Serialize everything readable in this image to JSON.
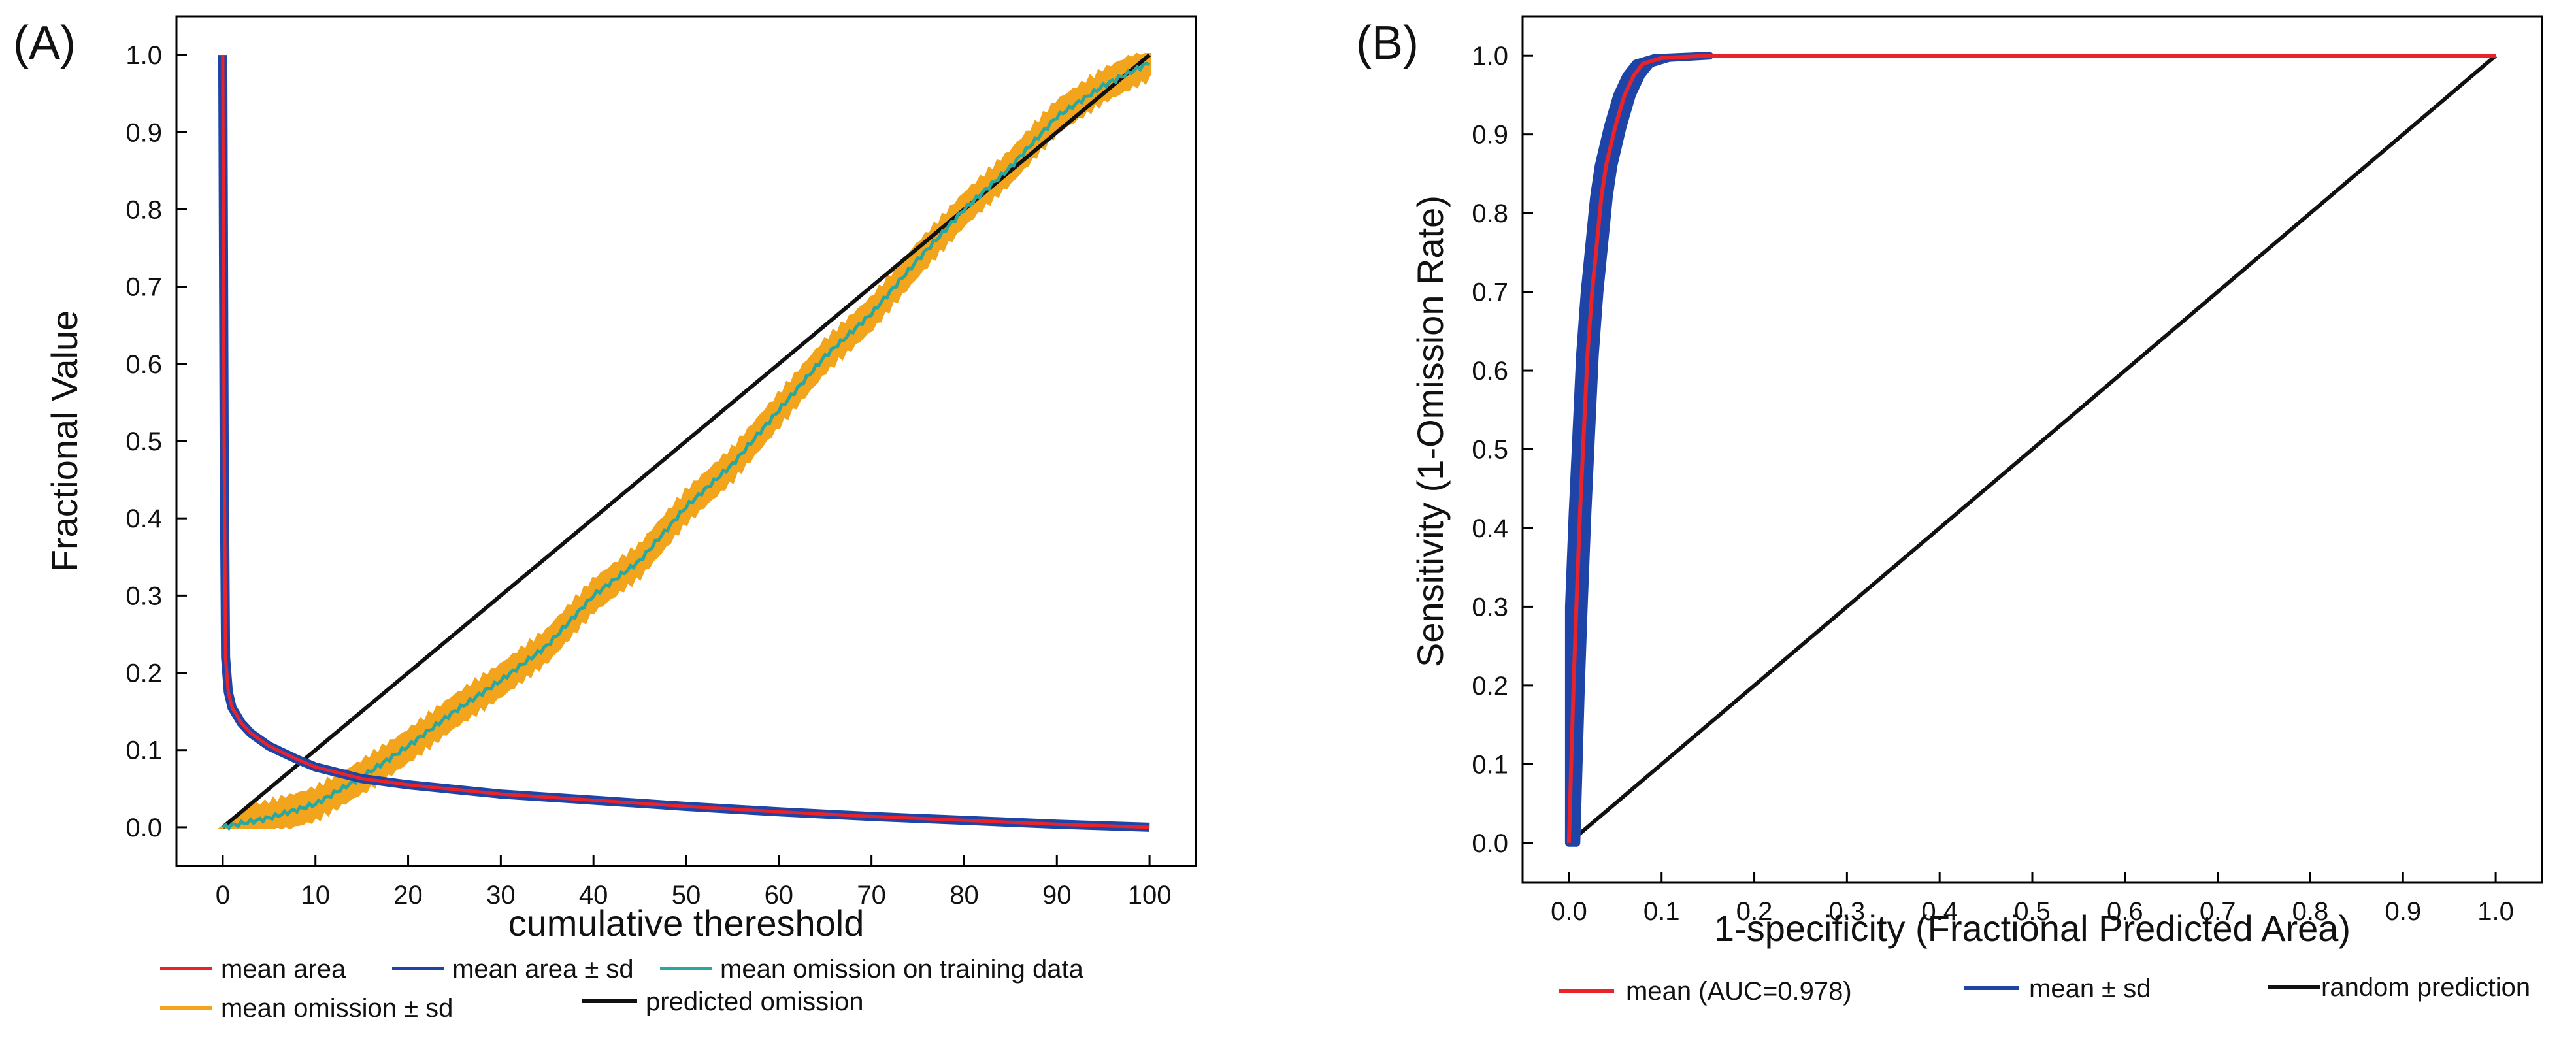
{
  "chart_data": [
    {
      "panel_label": "(A)",
      "type": "line",
      "xlabel": "cumulative thereshold",
      "ylabel": "Fractional Value",
      "xlim": [
        -5,
        105
      ],
      "ylim": [
        -0.05,
        1.05
      ],
      "xticks": [
        "0",
        "10",
        "20",
        "30",
        "40",
        "50",
        "60",
        "70",
        "80",
        "90",
        "100"
      ],
      "yticks": [
        "0.0",
        "0.1",
        "0.2",
        "0.3",
        "0.4",
        "0.5",
        "0.6",
        "0.7",
        "0.8",
        "0.9",
        "1.0"
      ],
      "colors": {
        "mean_area": "#e8232a",
        "mean_area_sd": "#1f44a8",
        "mean_omission": "#2aa8a0",
        "omission_sd": "#f2a51c",
        "predicted": "#111111"
      },
      "series": [
        {
          "name": "predicted omission",
          "points": [
            [
              0,
              0
            ],
            [
              100,
              1
            ]
          ]
        },
        {
          "name": "mean omission on training data",
          "points": [
            [
              0,
              0
            ],
            [
              5,
              0.012
            ],
            [
              10,
              0.03
            ],
            [
              15,
              0.065
            ],
            [
              20,
              0.105
            ],
            [
              25,
              0.15
            ],
            [
              30,
              0.19
            ],
            [
              35,
              0.235
            ],
            [
              40,
              0.3
            ],
            [
              45,
              0.345
            ],
            [
              50,
              0.415
            ],
            [
              55,
              0.47
            ],
            [
              60,
              0.54
            ],
            [
              65,
              0.61
            ],
            [
              70,
              0.665
            ],
            [
              75,
              0.735
            ],
            [
              80,
              0.8
            ],
            [
              85,
              0.855
            ],
            [
              90,
              0.92
            ],
            [
              95,
              0.96
            ],
            [
              100,
              0.99
            ]
          ]
        },
        {
          "name": "mean omission ± sd",
          "band": 0.022
        },
        {
          "name": "mean area",
          "points": [
            [
              0,
              1.0
            ],
            [
              0.15,
              0.5
            ],
            [
              0.3,
              0.22
            ],
            [
              0.6,
              0.175
            ],
            [
              1,
              0.155
            ],
            [
              2,
              0.135
            ],
            [
              3,
              0.122
            ],
            [
              5,
              0.105
            ],
            [
              8,
              0.088
            ],
            [
              10,
              0.078
            ],
            [
              15,
              0.063
            ],
            [
              20,
              0.055
            ],
            [
              30,
              0.043
            ],
            [
              40,
              0.035
            ],
            [
              50,
              0.027
            ],
            [
              60,
              0.02
            ],
            [
              70,
              0.014
            ],
            [
              80,
              0.009
            ],
            [
              90,
              0.004
            ],
            [
              100,
              0.0
            ]
          ]
        },
        {
          "name": "mean area ± sd",
          "band": 0.004
        }
      ],
      "legend": [
        {
          "label": "mean area",
          "color": "#e8232a"
        },
        {
          "label": "mean area ± sd",
          "color": "#1f44a8"
        },
        {
          "label": "mean omission on training data",
          "color": "#2aa8a0"
        },
        {
          "label": "mean omission ± sd",
          "color": "#f2a51c"
        },
        {
          "label": "predicted omission",
          "color": "#111111"
        }
      ]
    },
    {
      "panel_label": "(B)",
      "type": "line",
      "xlabel": "1-specificity (Fractional Predicted Area)",
      "ylabel": "Sensitivity (1-Omission Rate)",
      "xlim": [
        -0.05,
        1.05
      ],
      "ylim": [
        -0.05,
        1.05
      ],
      "xticks": [
        "0.0",
        "0.1",
        "0.2",
        "0.3",
        "0.4",
        "0.5",
        "0.6",
        "0.7",
        "0.8",
        "0.9",
        "1.0"
      ],
      "yticks": [
        "0.0",
        "0.1",
        "0.2",
        "0.3",
        "0.4",
        "0.5",
        "0.6",
        "0.7",
        "0.8",
        "0.9",
        "1.0"
      ],
      "colors": {
        "mean": "#e8232a",
        "sd": "#1f44a8",
        "random": "#111111"
      },
      "series": [
        {
          "name": "random prediction",
          "points": [
            [
              0,
              0
            ],
            [
              1,
              1
            ]
          ]
        },
        {
          "name": "mean (AUC=0.978)",
          "points": [
            [
              0,
              0
            ],
            [
              0.002,
              0.08
            ],
            [
              0.005,
              0.2
            ],
            [
              0.008,
              0.3
            ],
            [
              0.012,
              0.42
            ],
            [
              0.016,
              0.52
            ],
            [
              0.02,
              0.62
            ],
            [
              0.025,
              0.7
            ],
            [
              0.03,
              0.76
            ],
            [
              0.035,
              0.82
            ],
            [
              0.04,
              0.86
            ],
            [
              0.05,
              0.91
            ],
            [
              0.06,
              0.95
            ],
            [
              0.07,
              0.975
            ],
            [
              0.08,
              0.99
            ],
            [
              0.1,
              0.997
            ],
            [
              0.15,
              1.0
            ],
            [
              1.0,
              1.0
            ]
          ]
        },
        {
          "name": "mean ± sd",
          "band_x": 0.008
        }
      ],
      "legend": [
        {
          "label": "mean (AUC=0.978)",
          "color": "#e8232a"
        },
        {
          "label": "mean ± sd",
          "color": "#1f44a8"
        },
        {
          "label": "random prediction",
          "color": "#111111"
        }
      ]
    }
  ]
}
